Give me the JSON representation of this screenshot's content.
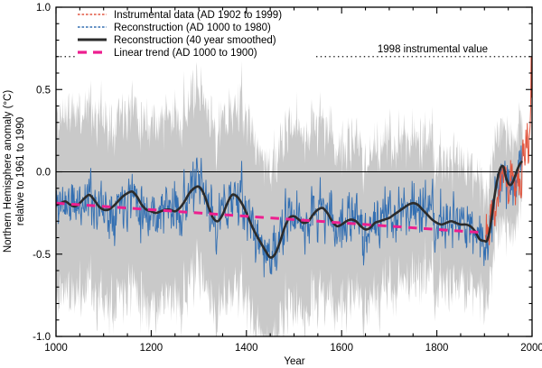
{
  "chart_data": {
    "type": "line",
    "title": "",
    "xlabel": "Year",
    "ylabel_line1": "Northern Hemisphere anomaly (°C)",
    "ylabel_line2": "relative to 1961 to 1990",
    "xlim": [
      1000,
      2000
    ],
    "ylim": [
      -1.0,
      1.0
    ],
    "x_ticks": [
      1000,
      1200,
      1400,
      1600,
      1800,
      2000
    ],
    "x_minor_step": 50,
    "y_ticks": [
      1.0,
      0.5,
      0.0,
      -0.5,
      -1.0
    ],
    "y_tick_labels": [
      "1.0",
      "0.5",
      "0.0",
      "-0.5",
      "-1.0"
    ],
    "y_minor_step": 0.1,
    "grid": false,
    "zero_line_y": 0.0,
    "annotation": {
      "text": "1998 instrumental value",
      "y": 0.7,
      "line_style": "dotted"
    },
    "legend_position": "top-left-inside",
    "legend": [
      {
        "series": "instrumental",
        "label": "Instrumental data (AD 1902 to 1999)"
      },
      {
        "series": "annual",
        "label": "Reconstruction (AD 1000 to 1980)"
      },
      {
        "series": "smoothed",
        "label": "Reconstruction (40 year smoothed)"
      },
      {
        "series": "trend",
        "label": "Linear trend (AD 1000 to 1900)"
      }
    ],
    "colors": {
      "instrumental": "#e25740",
      "annual": "#336fb2",
      "smoothed": "#2b2b2b",
      "trend": "#ed1e8f",
      "band": "#c9c9c9",
      "frame": "#000000"
    },
    "series": {
      "smoothed": {
        "name": "Reconstruction (40 year smoothed)",
        "start": 1000,
        "end": 1978,
        "points": [
          [
            1000,
            -0.2
          ],
          [
            1010,
            -0.19
          ],
          [
            1020,
            -0.18
          ],
          [
            1030,
            -0.2
          ],
          [
            1040,
            -0.21
          ],
          [
            1050,
            -0.19
          ],
          [
            1060,
            -0.16
          ],
          [
            1070,
            -0.14
          ],
          [
            1080,
            -0.17
          ],
          [
            1090,
            -0.21
          ],
          [
            1100,
            -0.23
          ],
          [
            1110,
            -0.23
          ],
          [
            1120,
            -0.21
          ],
          [
            1130,
            -0.18
          ],
          [
            1140,
            -0.15
          ],
          [
            1150,
            -0.13
          ],
          [
            1160,
            -0.12
          ],
          [
            1170,
            -0.15
          ],
          [
            1180,
            -0.2
          ],
          [
            1190,
            -0.23
          ],
          [
            1200,
            -0.24
          ],
          [
            1210,
            -0.25
          ],
          [
            1220,
            -0.24
          ],
          [
            1230,
            -0.23
          ],
          [
            1240,
            -0.23
          ],
          [
            1250,
            -0.24
          ],
          [
            1260,
            -0.22
          ],
          [
            1270,
            -0.18
          ],
          [
            1280,
            -0.13
          ],
          [
            1290,
            -0.1
          ],
          [
            1300,
            -0.09
          ],
          [
            1310,
            -0.13
          ],
          [
            1320,
            -0.21
          ],
          [
            1330,
            -0.28
          ],
          [
            1340,
            -0.3
          ],
          [
            1350,
            -0.26
          ],
          [
            1360,
            -0.19
          ],
          [
            1370,
            -0.14
          ],
          [
            1380,
            -0.15
          ],
          [
            1390,
            -0.19
          ],
          [
            1400,
            -0.25
          ],
          [
            1410,
            -0.32
          ],
          [
            1420,
            -0.38
          ],
          [
            1430,
            -0.43
          ],
          [
            1440,
            -0.48
          ],
          [
            1450,
            -0.52
          ],
          [
            1460,
            -0.5
          ],
          [
            1470,
            -0.43
          ],
          [
            1480,
            -0.34
          ],
          [
            1490,
            -0.28
          ],
          [
            1500,
            -0.27
          ],
          [
            1510,
            -0.29
          ],
          [
            1520,
            -0.31
          ],
          [
            1530,
            -0.3
          ],
          [
            1540,
            -0.26
          ],
          [
            1550,
            -0.23
          ],
          [
            1560,
            -0.22
          ],
          [
            1570,
            -0.25
          ],
          [
            1580,
            -0.3
          ],
          [
            1590,
            -0.33
          ],
          [
            1600,
            -0.32
          ],
          [
            1610,
            -0.3
          ],
          [
            1620,
            -0.29
          ],
          [
            1630,
            -0.3
          ],
          [
            1640,
            -0.33
          ],
          [
            1650,
            -0.35
          ],
          [
            1660,
            -0.34
          ],
          [
            1670,
            -0.31
          ],
          [
            1680,
            -0.3
          ],
          [
            1690,
            -0.29
          ],
          [
            1700,
            -0.28
          ],
          [
            1710,
            -0.26
          ],
          [
            1720,
            -0.24
          ],
          [
            1730,
            -0.22
          ],
          [
            1740,
            -0.2
          ],
          [
            1750,
            -0.19
          ],
          [
            1760,
            -0.2
          ],
          [
            1770,
            -0.23
          ],
          [
            1780,
            -0.26
          ],
          [
            1790,
            -0.29
          ],
          [
            1800,
            -0.31
          ],
          [
            1810,
            -0.32
          ],
          [
            1820,
            -0.31
          ],
          [
            1830,
            -0.3
          ],
          [
            1840,
            -0.31
          ],
          [
            1850,
            -0.32
          ],
          [
            1860,
            -0.32
          ],
          [
            1870,
            -0.33
          ],
          [
            1880,
            -0.36
          ],
          [
            1890,
            -0.41
          ],
          [
            1900,
            -0.42
          ],
          [
            1905,
            -0.42
          ],
          [
            1910,
            -0.37
          ],
          [
            1915,
            -0.28
          ],
          [
            1920,
            -0.17
          ],
          [
            1925,
            -0.08
          ],
          [
            1930,
            -0.01
          ],
          [
            1935,
            0.03
          ],
          [
            1940,
            0.03
          ],
          [
            1945,
            -0.03
          ],
          [
            1950,
            -0.07
          ],
          [
            1955,
            -0.08
          ],
          [
            1960,
            -0.06
          ],
          [
            1965,
            -0.02
          ],
          [
            1970,
            0.02
          ],
          [
            1975,
            0.05
          ],
          [
            1978,
            0.06
          ]
        ]
      },
      "annual": {
        "name": "Reconstruction (AD 1000 to 1980)",
        "start": 1000,
        "end": 1980,
        "follows": "smoothed",
        "noise_amp": 0.16,
        "noise_phi": 0.35,
        "seed": 11
      },
      "instrumental": {
        "name": "Instrumental data (AD 1902 to 1999)",
        "start": 1902,
        "end": 1999,
        "base_points": [
          [
            1902,
            -0.3
          ],
          [
            1905,
            -0.33
          ],
          [
            1908,
            -0.4
          ],
          [
            1911,
            -0.4
          ],
          [
            1915,
            -0.28
          ],
          [
            1920,
            -0.25
          ],
          [
            1925,
            -0.2
          ],
          [
            1930,
            -0.12
          ],
          [
            1935,
            -0.1
          ],
          [
            1940,
            0.04
          ],
          [
            1944,
            0.08
          ],
          [
            1948,
            -0.08
          ],
          [
            1950,
            -0.15
          ],
          [
            1955,
            -0.05
          ],
          [
            1958,
            0.0
          ],
          [
            1962,
            -0.02
          ],
          [
            1965,
            -0.12
          ],
          [
            1968,
            -0.05
          ],
          [
            1972,
            -0.02
          ],
          [
            1976,
            -0.12
          ],
          [
            1980,
            0.08
          ],
          [
            1983,
            0.12
          ],
          [
            1986,
            0.08
          ],
          [
            1988,
            0.18
          ],
          [
            1990,
            0.28
          ],
          [
            1992,
            0.15
          ],
          [
            1994,
            0.2
          ],
          [
            1996,
            0.28
          ],
          [
            1997,
            0.38
          ],
          [
            1998,
            0.7
          ],
          [
            1999,
            0.45
          ]
        ],
        "noise_amp": 0.12,
        "noise_phi": 0.3,
        "seed": 23,
        "noise_end_year": 1995,
        "peak_value_1998": 0.7
      },
      "trend": {
        "name": "Linear trend (AD 1000 to 1900)",
        "points": [
          [
            1000,
            -0.19
          ],
          [
            1900,
            -0.37
          ]
        ]
      }
    },
    "uncertainty_band": {
      "description": "95% confidence band around annual reconstruction",
      "start": 1000,
      "end": 1980,
      "halfwidth_points": [
        [
          1000,
          0.55
        ],
        [
          1300,
          0.55
        ],
        [
          1450,
          0.55
        ],
        [
          1550,
          0.53
        ],
        [
          1600,
          0.47
        ],
        [
          1650,
          0.45
        ],
        [
          1700,
          0.43
        ],
        [
          1750,
          0.42
        ],
        [
          1800,
          0.4
        ],
        [
          1850,
          0.38
        ],
        [
          1900,
          0.33
        ],
        [
          1940,
          0.28
        ],
        [
          1980,
          0.25
        ]
      ],
      "edge_noise_amp_hi": 0.06,
      "edge_noise_amp_lo": 0.08,
      "seed_hi": 101,
      "seed_lo": 202
    }
  }
}
